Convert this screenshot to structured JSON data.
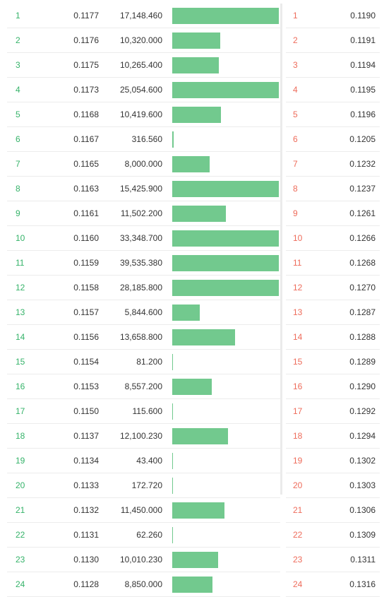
{
  "colors": {
    "bid_level": "#36b36a",
    "ask_level": "#ee6c5b",
    "bar": "#72c98e"
  },
  "bar_max_fraction_reference": 17148.46,
  "bids": [
    {
      "level": "1",
      "price": "0.1177",
      "amount": "17,148.460",
      "depth": 1.0
    },
    {
      "level": "2",
      "price": "0.1176",
      "amount": "10,320.000",
      "depth": 0.45
    },
    {
      "level": "3",
      "price": "0.1175",
      "amount": "10,265.400",
      "depth": 0.44
    },
    {
      "level": "4",
      "price": "0.1173",
      "amount": "25,054.600",
      "depth": 1.0
    },
    {
      "level": "5",
      "price": "0.1168",
      "amount": "10,419.600",
      "depth": 0.46
    },
    {
      "level": "6",
      "price": "0.1167",
      "amount": "316.560",
      "depth": 0.013
    },
    {
      "level": "7",
      "price": "0.1165",
      "amount": "8,000.000",
      "depth": 0.35
    },
    {
      "level": "8",
      "price": "0.1163",
      "amount": "15,425.900",
      "depth": 1.0
    },
    {
      "level": "9",
      "price": "0.1161",
      "amount": "11,502.200",
      "depth": 0.5
    },
    {
      "level": "10",
      "price": "0.1160",
      "amount": "33,348.700",
      "depth": 1.0
    },
    {
      "level": "11",
      "price": "0.1159",
      "amount": "39,535.380",
      "depth": 1.0
    },
    {
      "level": "12",
      "price": "0.1158",
      "amount": "28,185.800",
      "depth": 1.0
    },
    {
      "level": "13",
      "price": "0.1157",
      "amount": "5,844.600",
      "depth": 0.26
    },
    {
      "level": "14",
      "price": "0.1156",
      "amount": "13,658.800",
      "depth": 0.59
    },
    {
      "level": "15",
      "price": "0.1154",
      "amount": "81.200",
      "depth": 0.004
    },
    {
      "level": "16",
      "price": "0.1153",
      "amount": "8,557.200",
      "depth": 0.37
    },
    {
      "level": "17",
      "price": "0.1150",
      "amount": "115.600",
      "depth": 0.005
    },
    {
      "level": "18",
      "price": "0.1137",
      "amount": "12,100.230",
      "depth": 0.52
    },
    {
      "level": "19",
      "price": "0.1134",
      "amount": "43.400",
      "depth": 0.002
    },
    {
      "level": "20",
      "price": "0.1133",
      "amount": "172.720",
      "depth": 0.007
    },
    {
      "level": "21",
      "price": "0.1132",
      "amount": "11,450.000",
      "depth": 0.49
    },
    {
      "level": "22",
      "price": "0.1131",
      "amount": "62.260",
      "depth": 0.003
    },
    {
      "level": "23",
      "price": "0.1130",
      "amount": "10,010.230",
      "depth": 0.43
    },
    {
      "level": "24",
      "price": "0.1128",
      "amount": "8,850.000",
      "depth": 0.38
    }
  ],
  "asks": [
    {
      "level": "1",
      "price": "0.1190"
    },
    {
      "level": "2",
      "price": "0.1191"
    },
    {
      "level": "3",
      "price": "0.1194"
    },
    {
      "level": "4",
      "price": "0.1195"
    },
    {
      "level": "5",
      "price": "0.1196"
    },
    {
      "level": "6",
      "price": "0.1205"
    },
    {
      "level": "7",
      "price": "0.1232"
    },
    {
      "level": "8",
      "price": "0.1237"
    },
    {
      "level": "9",
      "price": "0.1261"
    },
    {
      "level": "10",
      "price": "0.1266"
    },
    {
      "level": "11",
      "price": "0.1268"
    },
    {
      "level": "12",
      "price": "0.1270"
    },
    {
      "level": "13",
      "price": "0.1287"
    },
    {
      "level": "14",
      "price": "0.1288"
    },
    {
      "level": "15",
      "price": "0.1289"
    },
    {
      "level": "16",
      "price": "0.1290"
    },
    {
      "level": "17",
      "price": "0.1292"
    },
    {
      "level": "18",
      "price": "0.1294"
    },
    {
      "level": "19",
      "price": "0.1302"
    },
    {
      "level": "20",
      "price": "0.1303"
    },
    {
      "level": "21",
      "price": "0.1306"
    },
    {
      "level": "22",
      "price": "0.1309"
    },
    {
      "level": "23",
      "price": "0.1311"
    },
    {
      "level": "24",
      "price": "0.1316"
    }
  ]
}
